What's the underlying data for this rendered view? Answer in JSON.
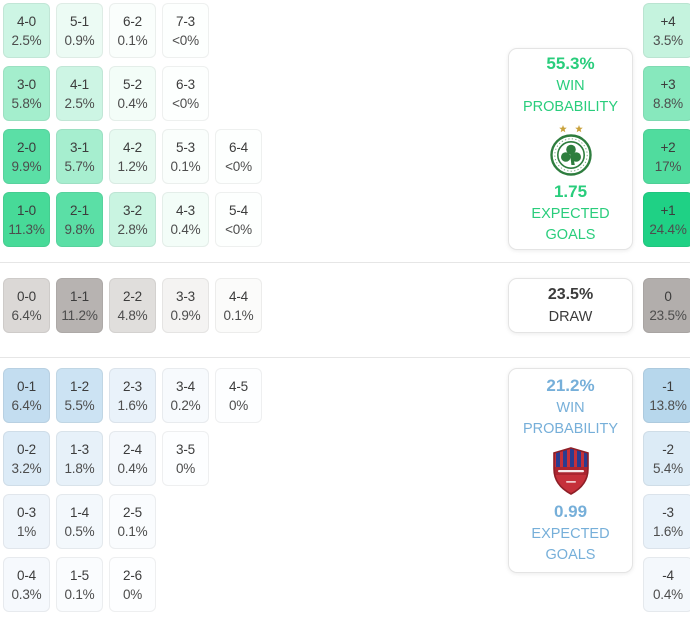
{
  "chart_data": {
    "type": "heatmap",
    "description": "Correct score probability matrix with goal-difference margins, win probabilities and expected goals",
    "colors": {
      "home_accent": "#29cd7c",
      "away_accent": "#76afd9",
      "draw_text": "#3b3b3b",
      "divider": "#e6e6e6"
    },
    "sections": {
      "home": {
        "win_probability_pct": "55.3%",
        "win_probability_label": "WIN PROBABILITY",
        "expected_goals_value": "1.75",
        "expected_goals_label": "EXPECTED GOALS",
        "team_logo": "home-team-crest",
        "rows": [
          [
            {
              "score": "4-0",
              "pct": "2.5%",
              "bg": "#cdf5e4"
            },
            {
              "score": "5-1",
              "pct": "0.9%",
              "bg": "#ecfbf4"
            },
            {
              "score": "6-2",
              "pct": "0.1%",
              "bg": "#fafefc"
            },
            {
              "score": "7-3",
              "pct": "<0%",
              "bg": "#fdfffe"
            }
          ],
          [
            {
              "score": "3-0",
              "pct": "5.8%",
              "bg": "#a4eecd"
            },
            {
              "score": "4-1",
              "pct": "2.5%",
              "bg": "#cdf5e4"
            },
            {
              "score": "5-2",
              "pct": "0.4%",
              "bg": "#f3fdf8"
            },
            {
              "score": "6-3",
              "pct": "<0%",
              "bg": "#fdfffe"
            }
          ],
          [
            {
              "score": "2-0",
              "pct": "9.9%",
              "bg": "#5bdfa6"
            },
            {
              "score": "3-1",
              "pct": "5.7%",
              "bg": "#a6eecf"
            },
            {
              "score": "4-2",
              "pct": "1.2%",
              "bg": "#e7faf1"
            },
            {
              "score": "5-3",
              "pct": "0.1%",
              "bg": "#fafefc"
            },
            {
              "score": "6-4",
              "pct": "<0%",
              "bg": "#fdfffe"
            }
          ],
          [
            {
              "score": "1-0",
              "pct": "11.3%",
              "bg": "#47da98"
            },
            {
              "score": "2-1",
              "pct": "9.8%",
              "bg": "#5bdfa6"
            },
            {
              "score": "3-2",
              "pct": "2.8%",
              "bg": "#c9f4e1"
            },
            {
              "score": "4-3",
              "pct": "0.4%",
              "bg": "#f3fdf8"
            },
            {
              "score": "5-4",
              "pct": "<0%",
              "bg": "#fdfffe"
            }
          ]
        ],
        "margins": [
          {
            "diff": "+4",
            "pct": "3.5%",
            "bg": "#c5f3de"
          },
          {
            "diff": "+3",
            "pct": "8.8%",
            "bg": "#87e8bd"
          },
          {
            "diff": "+2",
            "pct": "17%",
            "bg": "#50dc9e"
          },
          {
            "diff": "+1",
            "pct": "24.4%",
            "bg": "#1fd185"
          }
        ]
      },
      "draw": {
        "probability_pct": "23.5%",
        "label": "DRAW",
        "row": [
          {
            "score": "0-0",
            "pct": "6.4%",
            "bg": "#dbd8d6"
          },
          {
            "score": "1-1",
            "pct": "11.2%",
            "bg": "#b7b3b1"
          },
          {
            "score": "2-2",
            "pct": "4.8%",
            "bg": "#e0dedc"
          },
          {
            "score": "3-3",
            "pct": "0.9%",
            "bg": "#f4f3f2"
          },
          {
            "score": "4-4",
            "pct": "0.1%",
            "bg": "#fbfbfa"
          }
        ],
        "margin": {
          "diff": "0",
          "pct": "23.5%",
          "bg": "#b2aeac"
        }
      },
      "away": {
        "win_probability_pct": "21.2%",
        "win_probability_label": "WIN PROBABILITY",
        "expected_goals_value": "0.99",
        "expected_goals_label": "EXPECTED GOALS",
        "team_logo": "away-team-crest",
        "rows": [
          [
            {
              "score": "0-1",
              "pct": "6.4%",
              "bg": "#c3ddf0"
            },
            {
              "score": "1-2",
              "pct": "5.5%",
              "bg": "#cce3f3"
            },
            {
              "score": "2-3",
              "pct": "1.6%",
              "bg": "#e9f2fa"
            },
            {
              "score": "3-4",
              "pct": "0.2%",
              "bg": "#f7fafd"
            },
            {
              "score": "4-5",
              "pct": "0%",
              "bg": "#fdfeff"
            }
          ],
          [
            {
              "score": "0-2",
              "pct": "3.2%",
              "bg": "#dcebf7"
            },
            {
              "score": "1-3",
              "pct": "1.8%",
              "bg": "#e7f1f9"
            },
            {
              "score": "2-4",
              "pct": "0.4%",
              "bg": "#f4f8fc"
            },
            {
              "score": "3-5",
              "pct": "0%",
              "bg": "#fdfeff"
            }
          ],
          [
            {
              "score": "0-3",
              "pct": "1%",
              "bg": "#eff5fb"
            },
            {
              "score": "1-4",
              "pct": "0.5%",
              "bg": "#f3f8fc"
            },
            {
              "score": "2-5",
              "pct": "0.1%",
              "bg": "#fafcfe"
            }
          ],
          [
            {
              "score": "0-4",
              "pct": "0.3%",
              "bg": "#f6f9fd"
            },
            {
              "score": "1-5",
              "pct": "0.1%",
              "bg": "#fafcfe"
            },
            {
              "score": "2-6",
              "pct": "0%",
              "bg": "#fdfeff"
            }
          ]
        ],
        "margins": [
          {
            "diff": "-1",
            "pct": "13.8%",
            "bg": "#b7d7ec"
          },
          {
            "diff": "-2",
            "pct": "5.4%",
            "bg": "#dcebf6"
          },
          {
            "diff": "-3",
            "pct": "1.6%",
            "bg": "#e9f2fa"
          },
          {
            "diff": "-4",
            "pct": "0.4%",
            "bg": "#f4f8fc"
          }
        ]
      }
    }
  }
}
